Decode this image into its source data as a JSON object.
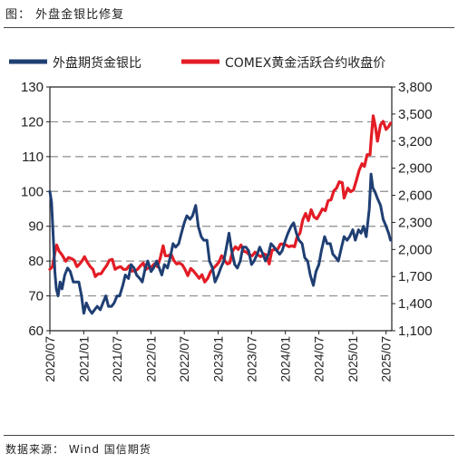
{
  "caption": "图： 外盘金银比修复",
  "source": "数据来源： Wind  国信期货",
  "chart_data": {
    "type": "line",
    "title": "",
    "legend": [
      {
        "name": "外盘期货金银比",
        "color": "#1f3f73",
        "axis": "left"
      },
      {
        "name": "COMEX黄金活跃合约收盘价",
        "color": "#e31c25",
        "axis": "right"
      }
    ],
    "legend_position": "top",
    "grid": "horizontal-dashed",
    "y_left": {
      "min": 60,
      "max": 130,
      "ticks": [
        "60",
        "70",
        "80",
        "90",
        "100",
        "110",
        "120",
        "130"
      ]
    },
    "y_right": {
      "min": 1100,
      "max": 3800,
      "ticks": [
        "1,100",
        "1,400",
        "1,700",
        "2,000",
        "2,300",
        "2,600",
        "2,900",
        "3,200",
        "3,500",
        "3,800"
      ]
    },
    "x_ticks": [
      "2020/07",
      "2021/01",
      "2021/07",
      "2022/01",
      "2022/07",
      "2023/01",
      "2023/07",
      "2024/01",
      "2024/07",
      "2025/01",
      "2025/07"
    ],
    "x_range": [
      "2020/07",
      "2025/08"
    ],
    "series": [
      {
        "name": "外盘期货金银比",
        "axis": "left",
        "points": [
          [
            "2020/07/01",
            100
          ],
          [
            "2020/07/10",
            97
          ],
          [
            "2020/07/20",
            86
          ],
          [
            "2020/07/28",
            77
          ],
          [
            "2020/08/05",
            72
          ],
          [
            "2020/08/15",
            70
          ],
          [
            "2020/08/25",
            74
          ],
          [
            "2020/09/05",
            72
          ],
          [
            "2020/09/20",
            76
          ],
          [
            "2020/10/05",
            78
          ],
          [
            "2020/10/20",
            77
          ],
          [
            "2020/11/05",
            74
          ],
          [
            "2020/11/20",
            74
          ],
          [
            "2020/12/05",
            74
          ],
          [
            "2020/12/20",
            70
          ],
          [
            "2021/01/01",
            65
          ],
          [
            "2021/01/15",
            68
          ],
          [
            "2021/02/01",
            66
          ],
          [
            "2021/02/15",
            65
          ],
          [
            "2021/03/01",
            66
          ],
          [
            "2021/03/15",
            67
          ],
          [
            "2021/04/01",
            66
          ],
          [
            "2021/04/15",
            68
          ],
          [
            "2021/05/01",
            70
          ],
          [
            "2021/05/15",
            67
          ],
          [
            "2021/06/01",
            67
          ],
          [
            "2021/06/15",
            68
          ],
          [
            "2021/07/01",
            70
          ],
          [
            "2021/07/15",
            70
          ],
          [
            "2021/08/01",
            73
          ],
          [
            "2021/08/15",
            76
          ],
          [
            "2021/09/01",
            75
          ],
          [
            "2021/09/15",
            79
          ],
          [
            "2021/10/01",
            78
          ],
          [
            "2021/10/15",
            76
          ],
          [
            "2021/11/01",
            75
          ],
          [
            "2021/11/15",
            74
          ],
          [
            "2021/12/01",
            78
          ],
          [
            "2021/12/15",
            80
          ],
          [
            "2022/01/01",
            77
          ],
          [
            "2022/01/15",
            78
          ],
          [
            "2022/02/01",
            80
          ],
          [
            "2022/02/15",
            78
          ],
          [
            "2022/03/01",
            76
          ],
          [
            "2022/03/15",
            79
          ],
          [
            "2022/04/01",
            78
          ],
          [
            "2022/04/15",
            81
          ],
          [
            "2022/05/01",
            85
          ],
          [
            "2022/05/15",
            84
          ],
          [
            "2022/06/01",
            85
          ],
          [
            "2022/06/15",
            88
          ],
          [
            "2022/07/01",
            91
          ],
          [
            "2022/07/15",
            93
          ],
          [
            "2022/08/01",
            92
          ],
          [
            "2022/08/15",
            93
          ],
          [
            "2022/09/01",
            96
          ],
          [
            "2022/09/15",
            90
          ],
          [
            "2022/10/01",
            87
          ],
          [
            "2022/10/15",
            86
          ],
          [
            "2022/11/01",
            86
          ],
          [
            "2022/11/15",
            80
          ],
          [
            "2022/12/01",
            78
          ],
          [
            "2022/12/15",
            74
          ],
          [
            "2023/01/01",
            76
          ],
          [
            "2023/01/15",
            78
          ],
          [
            "2023/02/01",
            80
          ],
          [
            "2023/02/15",
            84
          ],
          [
            "2023/03/01",
            88
          ],
          [
            "2023/03/15",
            83
          ],
          [
            "2023/04/01",
            79
          ],
          [
            "2023/04/15",
            78
          ],
          [
            "2023/05/01",
            80
          ],
          [
            "2023/05/15",
            84
          ],
          [
            "2023/06/01",
            84
          ],
          [
            "2023/06/15",
            83
          ],
          [
            "2023/07/01",
            79
          ],
          [
            "2023/07/15",
            80
          ],
          [
            "2023/08/01",
            82
          ],
          [
            "2023/08/15",
            84
          ],
          [
            "2023/09/01",
            82
          ],
          [
            "2023/09/15",
            80
          ],
          [
            "2023/10/01",
            82
          ],
          [
            "2023/10/15",
            85
          ],
          [
            "2023/11/01",
            84
          ],
          [
            "2023/11/15",
            83
          ],
          [
            "2023/12/01",
            82
          ],
          [
            "2023/12/15",
            83
          ],
          [
            "2024/01/01",
            86
          ],
          [
            "2024/01/15",
            88
          ],
          [
            "2024/02/01",
            90
          ],
          [
            "2024/02/15",
            91
          ],
          [
            "2024/03/01",
            88
          ],
          [
            "2024/03/15",
            86
          ],
          [
            "2024/04/01",
            85
          ],
          [
            "2024/04/15",
            81
          ],
          [
            "2024/05/01",
            80
          ],
          [
            "2024/05/15",
            76
          ],
          [
            "2024/06/01",
            73
          ],
          [
            "2024/06/15",
            77
          ],
          [
            "2024/07/01",
            79
          ],
          [
            "2024/07/15",
            83
          ],
          [
            "2024/08/01",
            87
          ],
          [
            "2024/08/15",
            85
          ],
          [
            "2024/09/01",
            85
          ],
          [
            "2024/09/15",
            82
          ],
          [
            "2024/10/01",
            81
          ],
          [
            "2024/10/15",
            80
          ],
          [
            "2024/11/01",
            84
          ],
          [
            "2024/11/15",
            87
          ],
          [
            "2024/12/01",
            86
          ],
          [
            "2024/12/15",
            87
          ],
          [
            "2025/01/01",
            89
          ],
          [
            "2025/01/15",
            86
          ],
          [
            "2025/02/01",
            89
          ],
          [
            "2025/02/15",
            88
          ],
          [
            "2025/03/01",
            90
          ],
          [
            "2025/03/15",
            87
          ],
          [
            "2025/04/01",
            95
          ],
          [
            "2025/04/10",
            105
          ],
          [
            "2025/04/20",
            101
          ],
          [
            "2025/05/01",
            100
          ],
          [
            "2025/05/15",
            98
          ],
          [
            "2025/06/01",
            96
          ],
          [
            "2025/06/15",
            92
          ],
          [
            "2025/07/01",
            90
          ],
          [
            "2025/07/15",
            88
          ],
          [
            "2025/07/25",
            86
          ]
        ]
      },
      {
        "name": "COMEX黄金活跃合约收盘价",
        "axis": "right",
        "points": [
          [
            "2020/07/01",
            1780
          ],
          [
            "2020/07/15",
            1810
          ],
          [
            "2020/07/28",
            1960
          ],
          [
            "2020/08/07",
            2050
          ],
          [
            "2020/08/20",
            1980
          ],
          [
            "2020/09/05",
            1940
          ],
          [
            "2020/09/25",
            1870
          ],
          [
            "2020/10/10",
            1910
          ],
          [
            "2020/10/25",
            1900
          ],
          [
            "2020/11/10",
            1880
          ],
          [
            "2020/11/25",
            1810
          ],
          [
            "2020/12/10",
            1840
          ],
          [
            "2020/12/25",
            1880
          ],
          [
            "2021/01/05",
            1920
          ],
          [
            "2021/01/20",
            1860
          ],
          [
            "2021/02/05",
            1810
          ],
          [
            "2021/02/20",
            1780
          ],
          [
            "2021/03/05",
            1700
          ],
          [
            "2021/03/20",
            1730
          ],
          [
            "2021/04/05",
            1730
          ],
          [
            "2021/04/20",
            1780
          ],
          [
            "2021/05/05",
            1820
          ],
          [
            "2021/05/20",
            1880
          ],
          [
            "2021/06/05",
            1890
          ],
          [
            "2021/06/20",
            1780
          ],
          [
            "2021/07/05",
            1800
          ],
          [
            "2021/07/20",
            1810
          ],
          [
            "2021/08/05",
            1780
          ],
          [
            "2021/08/20",
            1780
          ],
          [
            "2021/09/05",
            1820
          ],
          [
            "2021/09/20",
            1760
          ],
          [
            "2021/10/05",
            1760
          ],
          [
            "2021/10/20",
            1780
          ],
          [
            "2021/11/05",
            1820
          ],
          [
            "2021/11/20",
            1850
          ],
          [
            "2021/12/05",
            1780
          ],
          [
            "2021/12/20",
            1800
          ],
          [
            "2022/01/05",
            1810
          ],
          [
            "2022/01/20",
            1840
          ],
          [
            "2022/02/05",
            1810
          ],
          [
            "2022/02/20",
            1900
          ],
          [
            "2022/03/08",
            2040
          ],
          [
            "2022/03/20",
            1930
          ],
          [
            "2022/04/05",
            1930
          ],
          [
            "2022/04/20",
            1950
          ],
          [
            "2022/05/05",
            1880
          ],
          [
            "2022/05/20",
            1840
          ],
          [
            "2022/06/05",
            1850
          ],
          [
            "2022/06/20",
            1830
          ],
          [
            "2022/07/05",
            1780
          ],
          [
            "2022/07/20",
            1710
          ],
          [
            "2022/08/05",
            1790
          ],
          [
            "2022/08/20",
            1760
          ],
          [
            "2022/09/05",
            1720
          ],
          [
            "2022/09/20",
            1680
          ],
          [
            "2022/10/05",
            1720
          ],
          [
            "2022/10/20",
            1640
          ],
          [
            "2022/11/05",
            1680
          ],
          [
            "2022/11/20",
            1750
          ],
          [
            "2022/12/05",
            1790
          ],
          [
            "2022/12/20",
            1820
          ],
          [
            "2023/01/05",
            1860
          ],
          [
            "2023/01/20",
            1930
          ],
          [
            "2023/02/05",
            1880
          ],
          [
            "2023/02/20",
            1840
          ],
          [
            "2023/03/05",
            1850
          ],
          [
            "2023/03/20",
            1980
          ],
          [
            "2023/04/05",
            2030
          ],
          [
            "2023/04/20",
            2000
          ],
          [
            "2023/05/05",
            2050
          ],
          [
            "2023/05/20",
            1980
          ],
          [
            "2023/06/05",
            1970
          ],
          [
            "2023/06/20",
            1940
          ],
          [
            "2023/07/05",
            1930
          ],
          [
            "2023/07/20",
            1970
          ],
          [
            "2023/08/05",
            1940
          ],
          [
            "2023/08/20",
            1920
          ],
          [
            "2023/09/05",
            1950
          ],
          [
            "2023/09/20",
            1940
          ],
          [
            "2023/10/05",
            1840
          ],
          [
            "2023/10/20",
            1990
          ],
          [
            "2023/11/05",
            2000
          ],
          [
            "2023/11/20",
            2000
          ],
          [
            "2023/12/05",
            2060
          ],
          [
            "2023/12/20",
            2060
          ],
          [
            "2024/01/05",
            2050
          ],
          [
            "2024/01/20",
            2030
          ],
          [
            "2024/02/05",
            2040
          ],
          [
            "2024/02/20",
            2030
          ],
          [
            "2024/03/05",
            2140
          ],
          [
            "2024/03/20",
            2180
          ],
          [
            "2024/04/05",
            2330
          ],
          [
            "2024/04/20",
            2400
          ],
          [
            "2024/05/05",
            2320
          ],
          [
            "2024/05/20",
            2440
          ],
          [
            "2024/06/05",
            2360
          ],
          [
            "2024/06/20",
            2340
          ],
          [
            "2024/07/05",
            2390
          ],
          [
            "2024/07/20",
            2450
          ],
          [
            "2024/08/05",
            2430
          ],
          [
            "2024/08/20",
            2540
          ],
          [
            "2024/09/05",
            2550
          ],
          [
            "2024/09/20",
            2650
          ],
          [
            "2024/10/05",
            2680
          ],
          [
            "2024/10/20",
            2750
          ],
          [
            "2024/11/05",
            2740
          ],
          [
            "2024/11/15",
            2570
          ],
          [
            "2024/12/05",
            2680
          ],
          [
            "2024/12/20",
            2640
          ],
          [
            "2025/01/05",
            2660
          ],
          [
            "2025/01/20",
            2760
          ],
          [
            "2025/02/05",
            2880
          ],
          [
            "2025/02/20",
            2950
          ],
          [
            "2025/03/05",
            2920
          ],
          [
            "2025/03/20",
            3050
          ],
          [
            "2025/04/05",
            3050
          ],
          [
            "2025/04/12",
            3250
          ],
          [
            "2025/04/22",
            3480
          ],
          [
            "2025/05/05",
            3350
          ],
          [
            "2025/05/15",
            3200
          ],
          [
            "2025/06/01",
            3380
          ],
          [
            "2025/06/15",
            3420
          ],
          [
            "2025/07/01",
            3330
          ],
          [
            "2025/07/15",
            3360
          ],
          [
            "2025/07/25",
            3400
          ]
        ]
      }
    ]
  }
}
